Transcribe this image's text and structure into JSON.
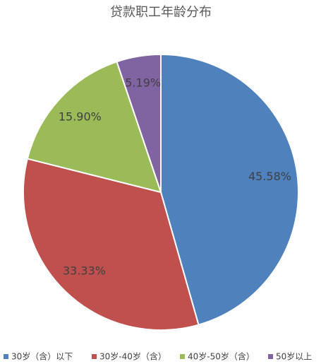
{
  "chart_data": {
    "type": "pie",
    "title": "贷款职工年龄分布",
    "categories": [
      "30岁（含）以下",
      "30岁-40岁（含）",
      "40岁-50岁（含）",
      "50岁以上"
    ],
    "values": [
      45.58,
      33.33,
      15.9,
      5.19
    ],
    "value_labels": [
      "45.58%",
      "33.33%",
      "15.90%",
      "5.19%"
    ],
    "colors": [
      "#4f81bd",
      "#c0504d",
      "#9bbb59",
      "#8064a2"
    ],
    "legend": "bottom"
  }
}
